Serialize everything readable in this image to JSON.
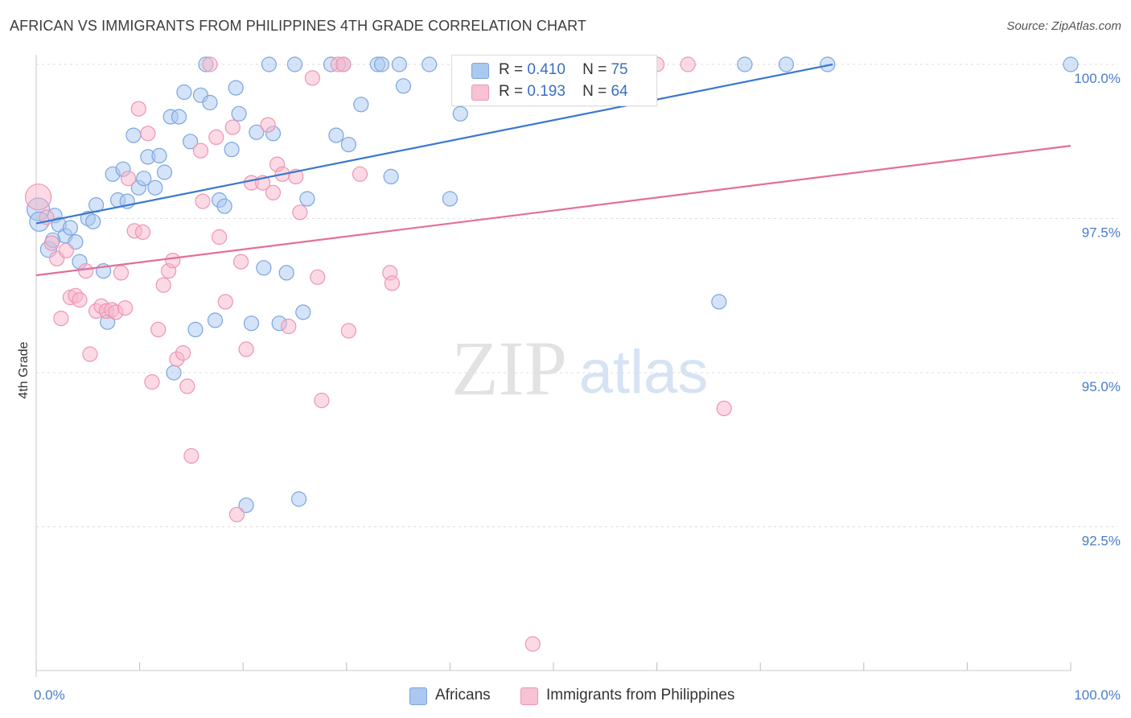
{
  "header": {
    "title": "AFRICAN VS IMMIGRANTS FROM PHILIPPINES 4TH GRADE CORRELATION CHART",
    "source": "Source: ZipAtlas.com"
  },
  "watermark": {
    "zip": "ZIP",
    "atlas": "atlas"
  },
  "legend": {
    "r_label": "R =",
    "n_label": "N =",
    "rows": [
      {
        "r": "0.410",
        "n": "75"
      },
      {
        "r": "0.193",
        "n": "64"
      }
    ]
  },
  "colors": {
    "africans_fill": "#aac8f0",
    "africans_stroke": "#7aa6e0",
    "africans_line": "#3a78cf",
    "philippines_fill": "#f7b6cb",
    "philippines_stroke": "#ee94b2",
    "philippines_line": "#e46e98",
    "tick_text": "#4a7cc9"
  },
  "chart_data": {
    "type": "scatter",
    "title": "AFRICAN VS IMMIGRANTS FROM PHILIPPINES 4TH GRADE CORRELATION CHART",
    "xlabel": "",
    "ylabel": "4th Grade",
    "xlim": [
      0,
      100
    ],
    "ylim": [
      90.2,
      100.35
    ],
    "x_tick_labels": [
      "0.0%",
      "100.0%"
    ],
    "y_ticks": [
      {
        "value": 100.0,
        "label": "100.0%"
      },
      {
        "value": 97.5,
        "label": "97.5%"
      },
      {
        "value": 95.0,
        "label": "95.0%"
      },
      {
        "value": 92.5,
        "label": "92.5%"
      }
    ],
    "grid": true,
    "legend_position": "bottom-center",
    "series": [
      {
        "name": "Africans",
        "r": 0.41,
        "n": 75,
        "trend": {
          "x": [
            0,
            77
          ],
          "y": [
            97.42,
            100.0
          ]
        },
        "points": [
          [
            0.2,
            97.65,
            14
          ],
          [
            0.3,
            97.45,
            12
          ],
          [
            1.2,
            97.0,
            10
          ],
          [
            1.8,
            97.55,
            9
          ],
          [
            2.2,
            97.4,
            9
          ],
          [
            2.8,
            97.22,
            9
          ],
          [
            1.6,
            97.15,
            9
          ],
          [
            3.3,
            97.35,
            9
          ],
          [
            3.8,
            97.12,
            9
          ],
          [
            5.0,
            97.5,
            9
          ],
          [
            4.2,
            96.8,
            9
          ],
          [
            5.5,
            97.45,
            9
          ],
          [
            5.8,
            97.72,
            9
          ],
          [
            6.5,
            96.65,
            9
          ],
          [
            6.9,
            95.82,
            9
          ],
          [
            7.4,
            98.22,
            9
          ],
          [
            7.9,
            97.8,
            9
          ],
          [
            8.4,
            98.3,
            9
          ],
          [
            8.8,
            97.78,
            9
          ],
          [
            9.4,
            98.85,
            9
          ],
          [
            9.9,
            98.0,
            9
          ],
          [
            10.4,
            98.15,
            9
          ],
          [
            10.8,
            98.5,
            9
          ],
          [
            11.5,
            98.0,
            9
          ],
          [
            11.9,
            98.52,
            9
          ],
          [
            12.4,
            98.25,
            9
          ],
          [
            13.0,
            99.15,
            9
          ],
          [
            13.3,
            95.0,
            9
          ],
          [
            13.8,
            99.15,
            9
          ],
          [
            14.3,
            99.55,
            9
          ],
          [
            14.9,
            98.75,
            9
          ],
          [
            15.4,
            95.7,
            9
          ],
          [
            15.9,
            99.5,
            9
          ],
          [
            16.4,
            100.0,
            9
          ],
          [
            16.8,
            99.38,
            9
          ],
          [
            17.3,
            95.85,
            9
          ],
          [
            17.7,
            97.8,
            9
          ],
          [
            18.2,
            97.7,
            9
          ],
          [
            18.9,
            98.62,
            9
          ],
          [
            19.3,
            99.62,
            9
          ],
          [
            19.6,
            99.2,
            9
          ],
          [
            20.3,
            92.85,
            9
          ],
          [
            20.8,
            95.8,
            9
          ],
          [
            21.3,
            98.9,
            9
          ],
          [
            22.0,
            96.7,
            9
          ],
          [
            22.5,
            100.0,
            9
          ],
          [
            22.9,
            98.88,
            9
          ],
          [
            23.5,
            95.8,
            9
          ],
          [
            24.2,
            96.62,
            9
          ],
          [
            25.0,
            100.0,
            9
          ],
          [
            25.4,
            92.95,
            9
          ],
          [
            25.8,
            95.98,
            9
          ],
          [
            26.2,
            97.82,
            9
          ],
          [
            28.5,
            100.0,
            9
          ],
          [
            29.0,
            98.85,
            9
          ],
          [
            29.7,
            100.0,
            9
          ],
          [
            30.2,
            98.7,
            9
          ],
          [
            31.4,
            99.35,
            9
          ],
          [
            33.0,
            100.0,
            9
          ],
          [
            33.4,
            100.0,
            9
          ],
          [
            34.3,
            98.18,
            9
          ],
          [
            35.1,
            100.0,
            9
          ],
          [
            35.5,
            99.65,
            9
          ],
          [
            38.0,
            100.0,
            9
          ],
          [
            40.0,
            97.82,
            9
          ],
          [
            41.0,
            99.2,
            9
          ],
          [
            43.0,
            100.0,
            9
          ],
          [
            46.0,
            100.0,
            9
          ],
          [
            49.0,
            100.0,
            9
          ],
          [
            53.0,
            100.0,
            9
          ],
          [
            66.0,
            96.15,
            9
          ],
          [
            68.5,
            100.0,
            9
          ],
          [
            72.5,
            100.0,
            9
          ],
          [
            76.5,
            100.0,
            9
          ],
          [
            100.0,
            100.0,
            9
          ]
        ]
      },
      {
        "name": "Immigrants from Philippines",
        "r": 0.193,
        "n": 64,
        "trend": {
          "x": [
            0,
            100
          ],
          "y": [
            96.58,
            98.68
          ]
        },
        "points": [
          [
            0.2,
            97.85,
            16
          ],
          [
            1.0,
            97.52,
            9
          ],
          [
            1.5,
            97.1,
            9
          ],
          [
            2.0,
            96.85,
            9
          ],
          [
            2.4,
            95.88,
            9
          ],
          [
            2.9,
            96.98,
            9
          ],
          [
            3.3,
            96.22,
            9
          ],
          [
            3.8,
            96.25,
            9
          ],
          [
            4.2,
            96.18,
            9
          ],
          [
            4.8,
            96.65,
            9
          ],
          [
            5.2,
            95.3,
            9
          ],
          [
            5.8,
            96.0,
            9
          ],
          [
            6.3,
            96.08,
            9
          ],
          [
            6.8,
            96.0,
            9
          ],
          [
            7.3,
            96.02,
            9
          ],
          [
            7.7,
            95.98,
            9
          ],
          [
            8.2,
            96.62,
            9
          ],
          [
            8.6,
            96.05,
            9
          ],
          [
            8.9,
            98.15,
            9
          ],
          [
            9.5,
            97.3,
            9
          ],
          [
            9.9,
            99.28,
            9
          ],
          [
            10.3,
            97.28,
            9
          ],
          [
            10.8,
            98.88,
            9
          ],
          [
            11.2,
            94.85,
            9
          ],
          [
            11.8,
            95.7,
            9
          ],
          [
            12.3,
            96.42,
            9
          ],
          [
            12.8,
            96.65,
            9
          ],
          [
            13.2,
            96.82,
            9
          ],
          [
            13.6,
            95.22,
            9
          ],
          [
            14.2,
            95.32,
            9
          ],
          [
            14.6,
            94.78,
            9
          ],
          [
            15.0,
            93.65,
            9
          ],
          [
            15.9,
            98.6,
            9
          ],
          [
            16.1,
            97.78,
            9
          ],
          [
            16.8,
            100.0,
            9
          ],
          [
            17.4,
            98.82,
            9
          ],
          [
            17.7,
            97.2,
            9
          ],
          [
            18.3,
            96.15,
            9
          ],
          [
            19.0,
            98.98,
            9
          ],
          [
            19.4,
            92.7,
            9
          ],
          [
            19.8,
            96.8,
            9
          ],
          [
            20.3,
            95.38,
            9
          ],
          [
            20.8,
            98.08,
            9
          ],
          [
            21.9,
            98.08,
            9
          ],
          [
            22.4,
            99.02,
            9
          ],
          [
            22.9,
            97.92,
            9
          ],
          [
            23.3,
            98.38,
            9
          ],
          [
            23.8,
            98.22,
            9
          ],
          [
            24.4,
            95.75,
            9
          ],
          [
            25.1,
            98.18,
            9
          ],
          [
            25.5,
            97.6,
            9
          ],
          [
            26.7,
            99.78,
            9
          ],
          [
            27.2,
            96.55,
            9
          ],
          [
            27.6,
            94.55,
            9
          ],
          [
            29.2,
            100.0,
            9
          ],
          [
            29.7,
            100.0,
            9
          ],
          [
            30.2,
            95.68,
            9
          ],
          [
            31.3,
            98.22,
            9
          ],
          [
            34.2,
            96.62,
            9
          ],
          [
            34.4,
            96.45,
            9
          ],
          [
            48.0,
            90.6,
            9
          ],
          [
            60.0,
            100.0,
            9
          ],
          [
            63.0,
            100.0,
            9
          ],
          [
            66.5,
            94.42,
            9
          ]
        ]
      }
    ]
  },
  "bottom_legend": {
    "items": [
      {
        "label": "Africans"
      },
      {
        "label": "Immigrants from Philippines"
      }
    ]
  }
}
